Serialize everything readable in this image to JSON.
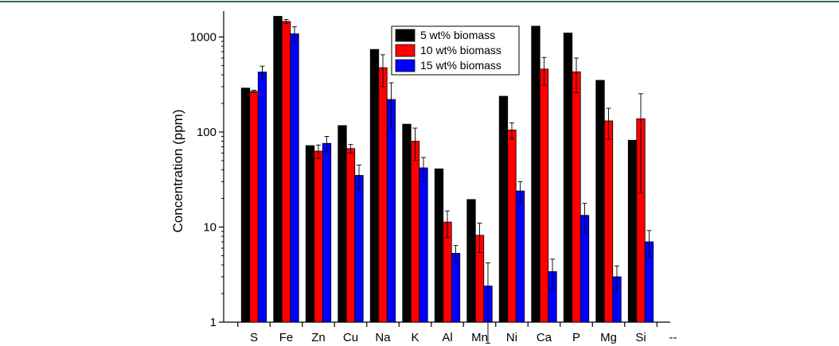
{
  "chart_data": {
    "type": "bar",
    "title": "",
    "xlabel": "",
    "ylabel": "Concentration (ppm)",
    "yscale": "log",
    "ylim": [
      1,
      2000
    ],
    "y_ticks": [
      1,
      10,
      100,
      1000
    ],
    "y_tick_labels": [
      "1",
      "10",
      "100",
      "1000"
    ],
    "categories": [
      "S",
      "Fe",
      "Zn",
      "Cu",
      "Na",
      "K",
      "Al",
      "Mn",
      "Ni",
      "Ca",
      "P",
      "Mg",
      "Si",
      "--"
    ],
    "series": [
      {
        "name": "5 wt% biomass",
        "color": "#000000",
        "values": [
          290,
          1650,
          72,
          117,
          740,
          121,
          41,
          19.5,
          238,
          1300,
          1100,
          350,
          82,
          null
        ],
        "errors": [
          null,
          null,
          null,
          null,
          null,
          null,
          null,
          null,
          null,
          null,
          null,
          null,
          null,
          null
        ]
      },
      {
        "name": "10 wt% biomass",
        "color": "#ff0000",
        "values": [
          268,
          1460,
          63,
          67,
          475,
          80,
          11.3,
          8.2,
          105,
          460,
          430,
          131,
          138,
          null
        ],
        "errors": [
          8,
          70,
          10,
          7,
          175,
          30,
          3.5,
          2.8,
          20,
          150,
          170,
          47,
          115,
          null
        ]
      },
      {
        "name": "15 wt% biomass",
        "color": "#0000ff",
        "values": [
          428,
          1080,
          76,
          35,
          220,
          42,
          5.3,
          2.4,
          24,
          3.4,
          13.3,
          3.0,
          7.0,
          null
        ],
        "errors": [
          65,
          200,
          14,
          10,
          110,
          12,
          1.1,
          1.8,
          6,
          1.2,
          4.5,
          0.9,
          2.2,
          null
        ]
      }
    ],
    "legend_position": "top-center",
    "grid": false
  }
}
